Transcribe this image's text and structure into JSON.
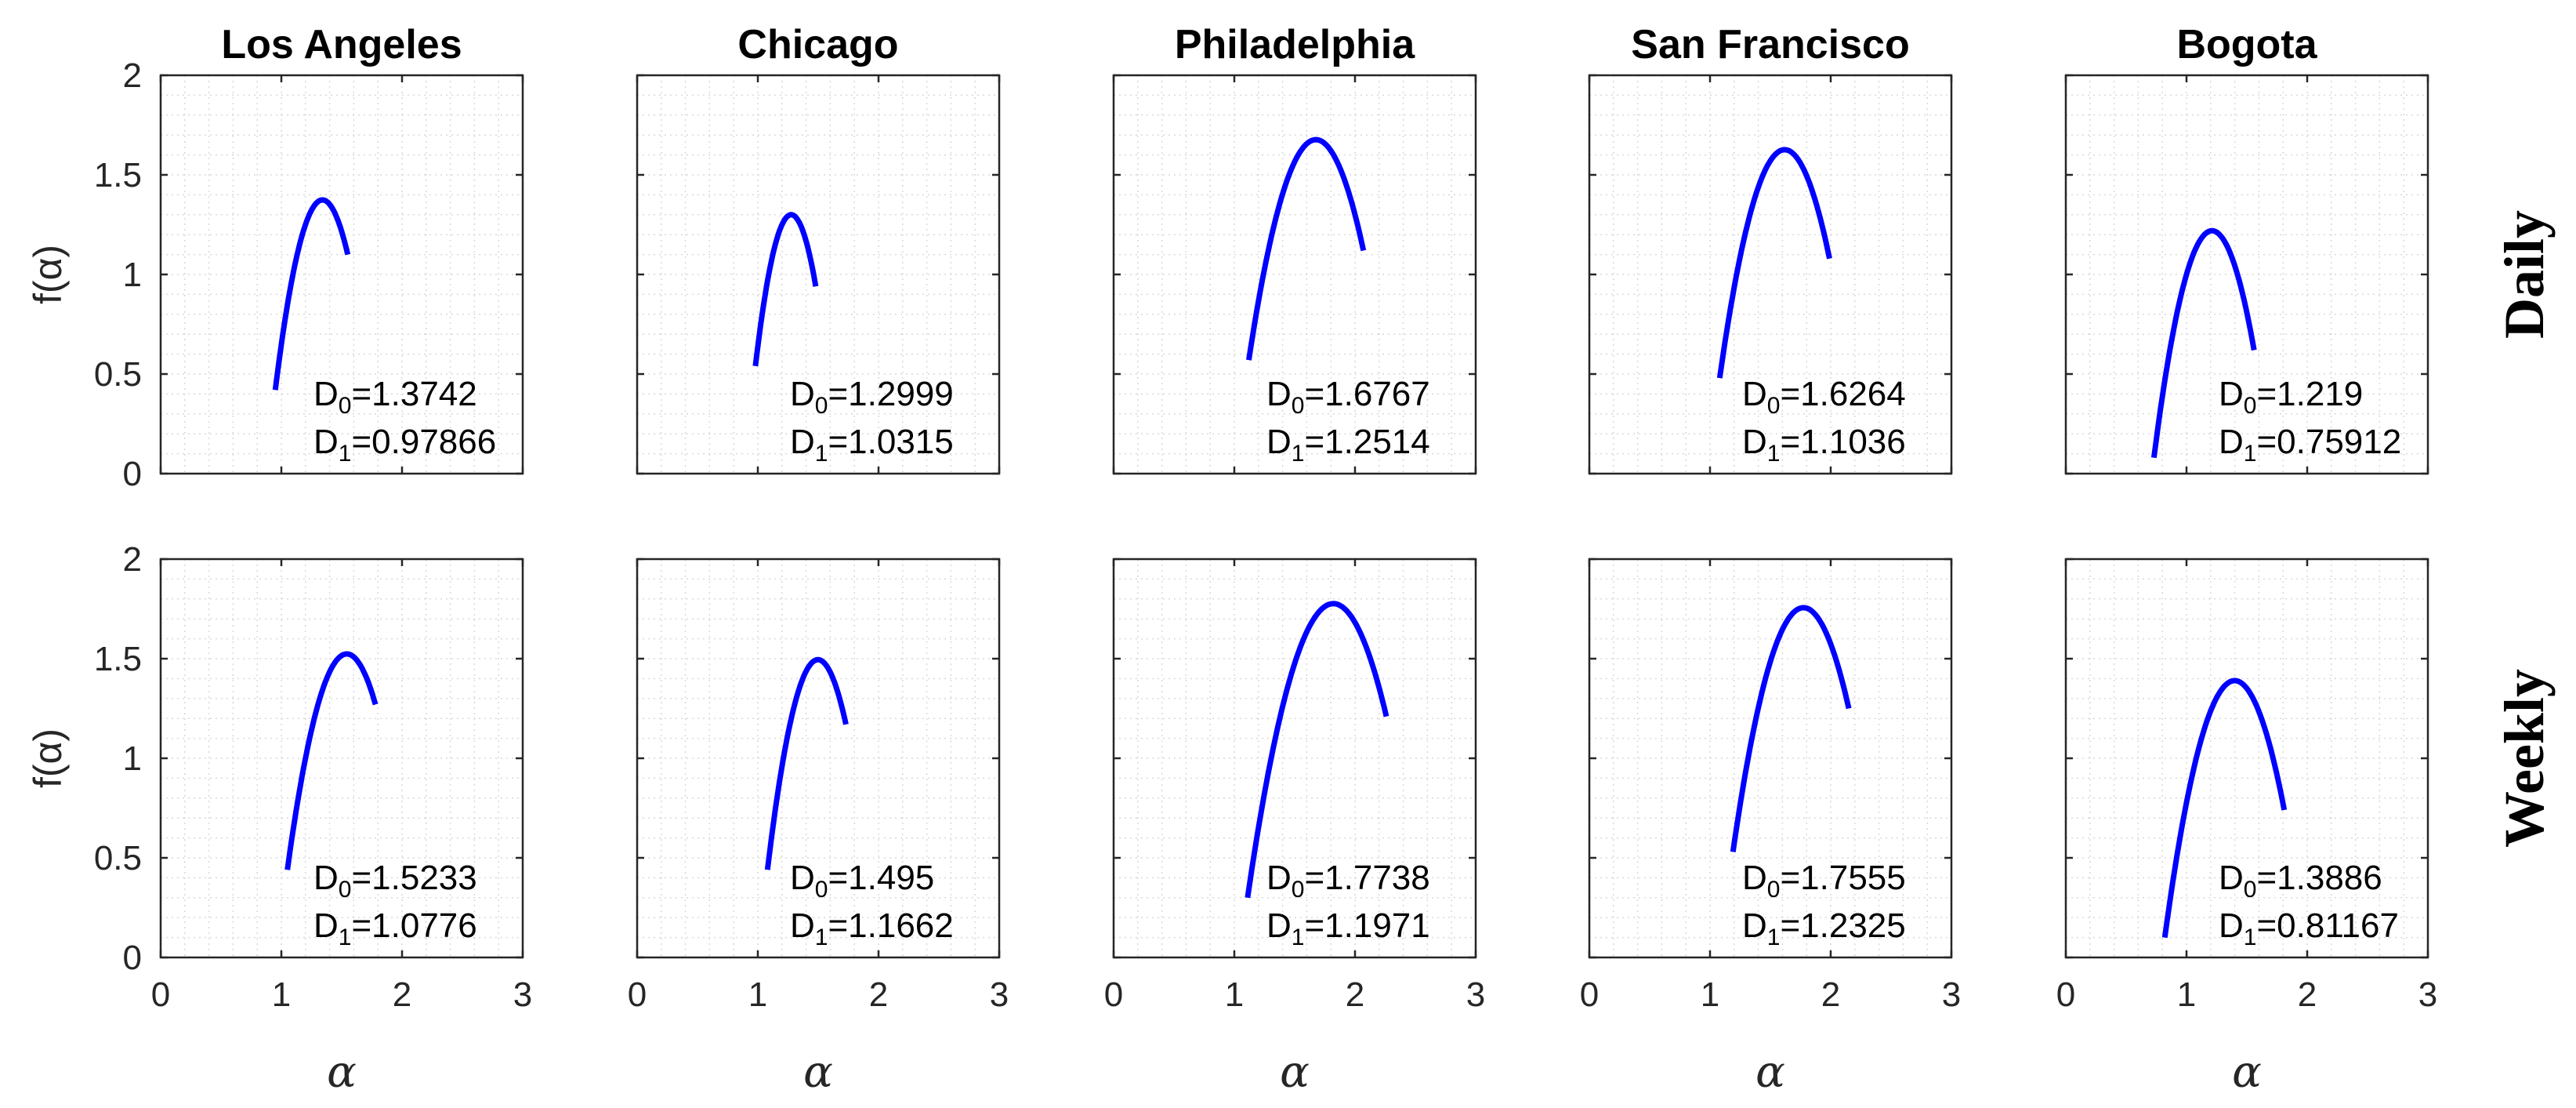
{
  "chart_data": {
    "type": "line",
    "layout": "2x5 small multiples",
    "columns": [
      "Los Angeles",
      "Chicago",
      "Philadelphia",
      "San Francisco",
      "Bogota"
    ],
    "rows": [
      "Daily",
      "Weekly"
    ],
    "xlabel": "α",
    "ylabel": "f(α)",
    "xlim": [
      0,
      3
    ],
    "ylim": [
      0,
      2
    ],
    "xticks": [
      "0",
      "1",
      "2",
      "3"
    ],
    "yticks": [
      "0",
      "0.5",
      "1",
      "1.5",
      "2"
    ],
    "grid": "on (minor, dotted)",
    "line_color": "#0000ff",
    "panels": [
      {
        "row": "Daily",
        "city": "Los Angeles",
        "x": [
          0.95,
          1.34,
          1.55
        ],
        "y": [
          0.42,
          1.3742,
          1.1
        ],
        "D0": "1.3742",
        "D1": "0.97866"
      },
      {
        "row": "Daily",
        "city": "Chicago",
        "x": [
          0.98,
          1.28,
          1.48
        ],
        "y": [
          0.54,
          1.2999,
          0.94
        ],
        "D0": "1.2999",
        "D1": "1.0315"
      },
      {
        "row": "Daily",
        "city": "Philadelphia",
        "x": [
          1.12,
          1.67,
          2.07
        ],
        "y": [
          0.57,
          1.6767,
          1.12
        ],
        "D0": "1.6767",
        "D1": "1.2514"
      },
      {
        "row": "Daily",
        "city": "San Francisco",
        "x": [
          1.08,
          1.62,
          1.99
        ],
        "y": [
          0.48,
          1.6264,
          1.08
        ],
        "D0": "1.6264",
        "D1": "1.1036"
      },
      {
        "row": "Daily",
        "city": "Bogota",
        "x": [
          0.73,
          1.2,
          1.56
        ],
        "y": [
          0.08,
          1.219,
          0.62
        ],
        "D0": "1.219",
        "D1": "0.75912"
      },
      {
        "row": "Weekly",
        "city": "Los Angeles",
        "x": [
          1.05,
          1.53,
          1.78
        ],
        "y": [
          0.44,
          1.5233,
          1.27
        ],
        "D0": "1.5233",
        "D1": "1.0776"
      },
      {
        "row": "Weekly",
        "city": "Chicago",
        "x": [
          1.08,
          1.5,
          1.73
        ],
        "y": [
          0.44,
          1.495,
          1.17
        ],
        "D0": "1.495",
        "D1": "1.1662"
      },
      {
        "row": "Weekly",
        "city": "Philadelphia",
        "x": [
          1.11,
          1.79,
          2.26
        ],
        "y": [
          0.3,
          1.7738,
          1.21
        ],
        "D0": "1.7738",
        "D1": "1.1971"
      },
      {
        "row": "Weekly",
        "city": "San Francisco",
        "x": [
          1.19,
          1.76,
          2.15
        ],
        "y": [
          0.53,
          1.7555,
          1.25
        ],
        "D0": "1.7555",
        "D1": "1.2325"
      },
      {
        "row": "Weekly",
        "city": "Bogota",
        "x": [
          0.82,
          1.38,
          1.81
        ],
        "y": [
          0.1,
          1.3886,
          0.74
        ],
        "D0": "1.3886",
        "D1": "0.81167"
      }
    ]
  }
}
